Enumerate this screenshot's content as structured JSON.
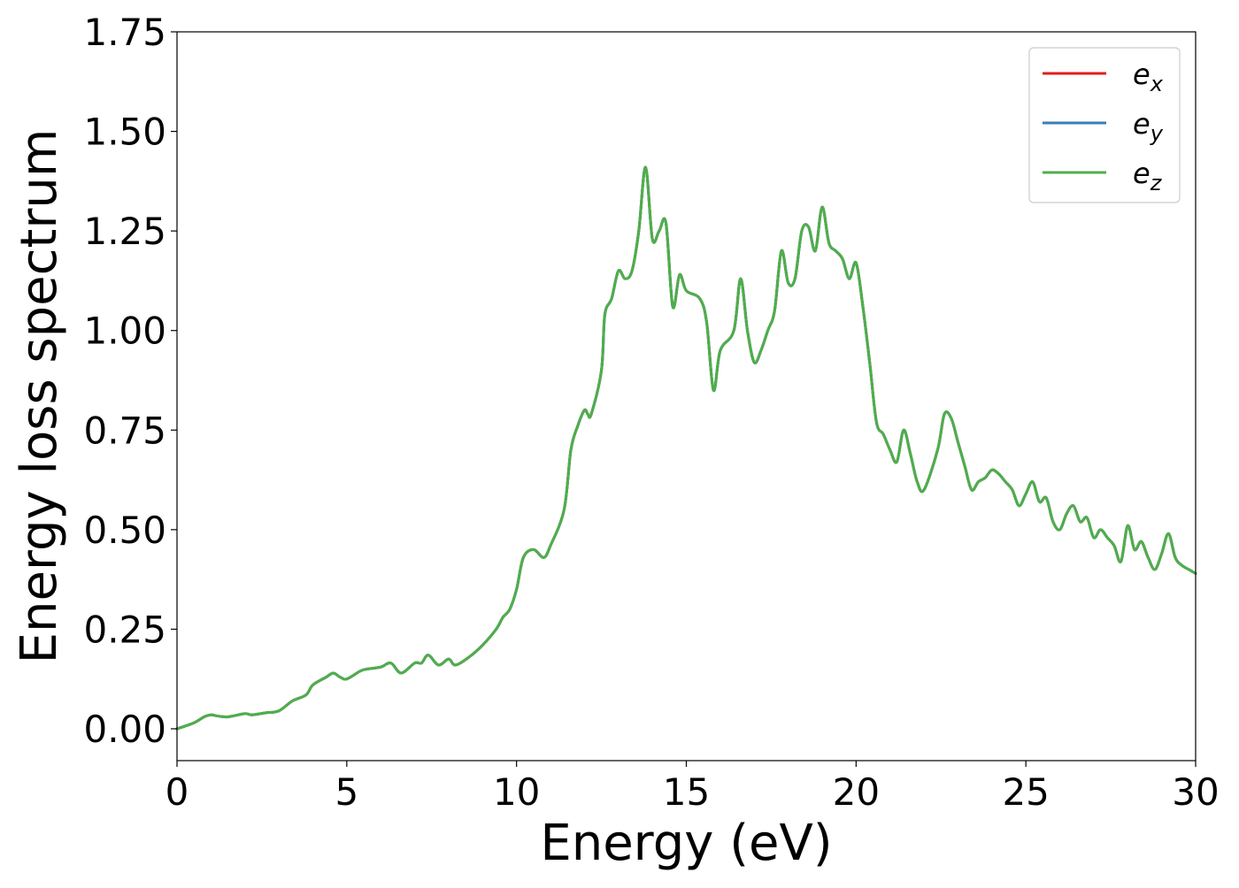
{
  "chart_data": {
    "type": "line",
    "title": "",
    "xlabel": "Energy (eV)",
    "ylabel": "Energy loss spectrum",
    "xlim": [
      0,
      30
    ],
    "ylim": [
      -0.08,
      1.75
    ],
    "xticks": [
      0,
      5,
      10,
      15,
      20,
      25,
      30
    ],
    "xtick_labels": [
      "0",
      "5",
      "10",
      "15",
      "20",
      "25",
      "30"
    ],
    "yticks": [
      0,
      0.25,
      0.5,
      0.75,
      1.0,
      1.25,
      1.5,
      1.75
    ],
    "ytick_labels": [
      "0.00",
      "0.25",
      "0.50",
      "0.75",
      "1.00",
      "1.25",
      "1.50",
      "1.75"
    ],
    "grid": false,
    "legend": {
      "position": "top-right"
    },
    "series": [
      {
        "name": "e_x",
        "label_base": "e",
        "label_sub": "x",
        "color": "#e41a1c",
        "x": [
          0,
          0.5,
          0.8,
          1.0,
          1.2,
          1.5,
          2.0,
          2.2,
          2.6,
          3.0,
          3.4,
          3.8,
          4.0,
          4.4,
          4.6,
          4.8,
          5.0,
          5.4,
          5.6,
          6.0,
          6.3,
          6.6,
          7.0,
          7.2,
          7.4,
          7.7,
          8.0,
          8.2,
          8.6,
          9.0,
          9.4,
          9.6,
          9.8,
          10.0,
          10.2,
          10.5,
          10.8,
          11.0,
          11.4,
          11.6,
          11.8,
          12.0,
          12.1,
          12.2,
          12.5,
          12.6,
          12.8,
          13.0,
          13.2,
          13.4,
          13.6,
          13.8,
          14.0,
          14.2,
          14.4,
          14.6,
          14.8,
          15.0,
          15.4,
          15.6,
          15.8,
          16.0,
          16.4,
          16.6,
          16.8,
          17.0,
          17.2,
          17.4,
          17.6,
          17.8,
          18.0,
          18.2,
          18.4,
          18.6,
          18.8,
          19.0,
          19.2,
          19.4,
          19.6,
          19.8,
          20.0,
          20.2,
          20.4,
          20.6,
          20.8,
          21.0,
          21.2,
          21.4,
          21.6,
          21.8,
          22.0,
          22.4,
          22.6,
          22.8,
          23.0,
          23.2,
          23.4,
          23.6,
          23.8,
          24.0,
          24.2,
          24.4,
          24.6,
          24.8,
          25.0,
          25.2,
          25.4,
          25.6,
          25.8,
          26.0,
          26.2,
          26.4,
          26.6,
          26.8,
          27.0,
          27.2,
          27.4,
          27.6,
          27.8,
          28.0,
          28.2,
          28.4,
          28.6,
          28.8,
          29.0,
          29.2,
          29.4,
          29.6,
          29.8,
          30.0
        ],
        "y": [
          0.0,
          0.015,
          0.03,
          0.035,
          0.032,
          0.03,
          0.038,
          0.035,
          0.04,
          0.045,
          0.07,
          0.085,
          0.11,
          0.13,
          0.14,
          0.13,
          0.125,
          0.145,
          0.15,
          0.155,
          0.165,
          0.14,
          0.165,
          0.165,
          0.185,
          0.16,
          0.175,
          0.16,
          0.18,
          0.21,
          0.25,
          0.28,
          0.3,
          0.35,
          0.43,
          0.45,
          0.43,
          0.46,
          0.55,
          0.7,
          0.76,
          0.8,
          0.79,
          0.79,
          0.9,
          1.04,
          1.08,
          1.15,
          1.13,
          1.15,
          1.25,
          1.41,
          1.23,
          1.25,
          1.27,
          1.06,
          1.14,
          1.1,
          1.08,
          1.02,
          0.85,
          0.95,
          1.0,
          1.13,
          1.0,
          0.92,
          0.95,
          1.0,
          1.05,
          1.2,
          1.12,
          1.13,
          1.25,
          1.26,
          1.2,
          1.31,
          1.22,
          1.2,
          1.18,
          1.13,
          1.17,
          1.06,
          0.92,
          0.77,
          0.74,
          0.7,
          0.67,
          0.75,
          0.69,
          0.62,
          0.6,
          0.7,
          0.79,
          0.78,
          0.72,
          0.66,
          0.6,
          0.62,
          0.63,
          0.65,
          0.64,
          0.62,
          0.6,
          0.56,
          0.59,
          0.62,
          0.57,
          0.58,
          0.52,
          0.5,
          0.54,
          0.56,
          0.52,
          0.53,
          0.48,
          0.5,
          0.48,
          0.46,
          0.42,
          0.51,
          0.45,
          0.47,
          0.43,
          0.4,
          0.44,
          0.49,
          0.43,
          0.41,
          0.4,
          0.39
        ]
      },
      {
        "name": "e_y",
        "label_base": "e",
        "label_sub": "y",
        "color": "#377eb8",
        "x": [
          0,
          0.5,
          0.8,
          1.0,
          1.2,
          1.5,
          2.0,
          2.2,
          2.6,
          3.0,
          3.4,
          3.8,
          4.0,
          4.4,
          4.6,
          4.8,
          5.0,
          5.4,
          5.6,
          6.0,
          6.3,
          6.6,
          7.0,
          7.2,
          7.4,
          7.7,
          8.0,
          8.2,
          8.6,
          9.0,
          9.4,
          9.6,
          9.8,
          10.0,
          10.2,
          10.5,
          10.8,
          11.0,
          11.4,
          11.6,
          11.8,
          12.0,
          12.1,
          12.2,
          12.5,
          12.6,
          12.8,
          13.0,
          13.2,
          13.4,
          13.6,
          13.8,
          14.0,
          14.2,
          14.4,
          14.6,
          14.8,
          15.0,
          15.4,
          15.6,
          15.8,
          16.0,
          16.4,
          16.6,
          16.8,
          17.0,
          17.2,
          17.4,
          17.6,
          17.8,
          18.0,
          18.2,
          18.4,
          18.6,
          18.8,
          19.0,
          19.2,
          19.4,
          19.6,
          19.8,
          20.0,
          20.2,
          20.4,
          20.6,
          20.8,
          21.0,
          21.2,
          21.4,
          21.6,
          21.8,
          22.0,
          22.4,
          22.6,
          22.8,
          23.0,
          23.2,
          23.4,
          23.6,
          23.8,
          24.0,
          24.2,
          24.4,
          24.6,
          24.8,
          25.0,
          25.2,
          25.4,
          25.6,
          25.8,
          26.0,
          26.2,
          26.4,
          26.6,
          26.8,
          27.0,
          27.2,
          27.4,
          27.6,
          27.8,
          28.0,
          28.2,
          28.4,
          28.6,
          28.8,
          29.0,
          29.2,
          29.4,
          29.6,
          29.8,
          30.0
        ],
        "y": [
          0.0,
          0.015,
          0.03,
          0.035,
          0.032,
          0.03,
          0.038,
          0.035,
          0.04,
          0.045,
          0.07,
          0.085,
          0.11,
          0.13,
          0.14,
          0.13,
          0.125,
          0.145,
          0.15,
          0.155,
          0.165,
          0.14,
          0.165,
          0.165,
          0.185,
          0.16,
          0.175,
          0.16,
          0.18,
          0.21,
          0.25,
          0.28,
          0.3,
          0.35,
          0.43,
          0.45,
          0.43,
          0.46,
          0.55,
          0.7,
          0.76,
          0.8,
          0.79,
          0.79,
          0.9,
          1.04,
          1.08,
          1.15,
          1.13,
          1.15,
          1.25,
          1.41,
          1.23,
          1.25,
          1.27,
          1.06,
          1.14,
          1.1,
          1.08,
          1.02,
          0.85,
          0.95,
          1.0,
          1.13,
          1.0,
          0.92,
          0.95,
          1.0,
          1.05,
          1.2,
          1.12,
          1.13,
          1.25,
          1.26,
          1.2,
          1.31,
          1.22,
          1.2,
          1.18,
          1.13,
          1.17,
          1.06,
          0.92,
          0.77,
          0.74,
          0.7,
          0.67,
          0.75,
          0.69,
          0.62,
          0.6,
          0.7,
          0.79,
          0.78,
          0.72,
          0.66,
          0.6,
          0.62,
          0.63,
          0.65,
          0.64,
          0.62,
          0.6,
          0.56,
          0.59,
          0.62,
          0.57,
          0.58,
          0.52,
          0.5,
          0.54,
          0.56,
          0.52,
          0.53,
          0.48,
          0.5,
          0.48,
          0.46,
          0.42,
          0.51,
          0.45,
          0.47,
          0.43,
          0.4,
          0.44,
          0.49,
          0.43,
          0.41,
          0.4,
          0.39
        ]
      },
      {
        "name": "e_z",
        "label_base": "e",
        "label_sub": "z",
        "color": "#4daf4a",
        "x": [
          0,
          0.5,
          0.8,
          1.0,
          1.2,
          1.5,
          2.0,
          2.2,
          2.6,
          3.0,
          3.4,
          3.8,
          4.0,
          4.4,
          4.6,
          4.8,
          5.0,
          5.4,
          5.6,
          6.0,
          6.3,
          6.6,
          7.0,
          7.2,
          7.4,
          7.7,
          8.0,
          8.2,
          8.6,
          9.0,
          9.4,
          9.6,
          9.8,
          10.0,
          10.2,
          10.5,
          10.8,
          11.0,
          11.4,
          11.6,
          11.8,
          12.0,
          12.1,
          12.2,
          12.5,
          12.6,
          12.8,
          13.0,
          13.2,
          13.4,
          13.6,
          13.8,
          14.0,
          14.2,
          14.4,
          14.6,
          14.8,
          15.0,
          15.4,
          15.6,
          15.8,
          16.0,
          16.4,
          16.6,
          16.8,
          17.0,
          17.2,
          17.4,
          17.6,
          17.8,
          18.0,
          18.2,
          18.4,
          18.6,
          18.8,
          19.0,
          19.2,
          19.4,
          19.6,
          19.8,
          20.0,
          20.2,
          20.4,
          20.6,
          20.8,
          21.0,
          21.2,
          21.4,
          21.6,
          21.8,
          22.0,
          22.4,
          22.6,
          22.8,
          23.0,
          23.2,
          23.4,
          23.6,
          23.8,
          24.0,
          24.2,
          24.4,
          24.6,
          24.8,
          25.0,
          25.2,
          25.4,
          25.6,
          25.8,
          26.0,
          26.2,
          26.4,
          26.6,
          26.8,
          27.0,
          27.2,
          27.4,
          27.6,
          27.8,
          28.0,
          28.2,
          28.4,
          28.6,
          28.8,
          29.0,
          29.2,
          29.4,
          29.6,
          29.8,
          30.0
        ],
        "y": [
          0.0,
          0.015,
          0.03,
          0.035,
          0.032,
          0.03,
          0.038,
          0.035,
          0.04,
          0.045,
          0.07,
          0.085,
          0.11,
          0.13,
          0.14,
          0.13,
          0.125,
          0.145,
          0.15,
          0.155,
          0.165,
          0.14,
          0.165,
          0.165,
          0.185,
          0.16,
          0.175,
          0.16,
          0.18,
          0.21,
          0.25,
          0.28,
          0.3,
          0.35,
          0.43,
          0.45,
          0.43,
          0.46,
          0.55,
          0.7,
          0.76,
          0.8,
          0.79,
          0.79,
          0.9,
          1.04,
          1.08,
          1.15,
          1.13,
          1.15,
          1.25,
          1.41,
          1.23,
          1.25,
          1.27,
          1.06,
          1.14,
          1.1,
          1.08,
          1.02,
          0.85,
          0.95,
          1.0,
          1.13,
          1.0,
          0.92,
          0.95,
          1.0,
          1.05,
          1.2,
          1.12,
          1.13,
          1.25,
          1.26,
          1.2,
          1.31,
          1.22,
          1.2,
          1.18,
          1.13,
          1.17,
          1.06,
          0.92,
          0.77,
          0.74,
          0.7,
          0.67,
          0.75,
          0.69,
          0.62,
          0.6,
          0.7,
          0.79,
          0.78,
          0.72,
          0.66,
          0.6,
          0.62,
          0.63,
          0.65,
          0.64,
          0.62,
          0.6,
          0.56,
          0.59,
          0.62,
          0.57,
          0.58,
          0.52,
          0.5,
          0.54,
          0.56,
          0.52,
          0.53,
          0.48,
          0.5,
          0.48,
          0.46,
          0.42,
          0.51,
          0.45,
          0.47,
          0.43,
          0.4,
          0.44,
          0.49,
          0.43,
          0.41,
          0.4,
          0.39
        ]
      }
    ]
  }
}
